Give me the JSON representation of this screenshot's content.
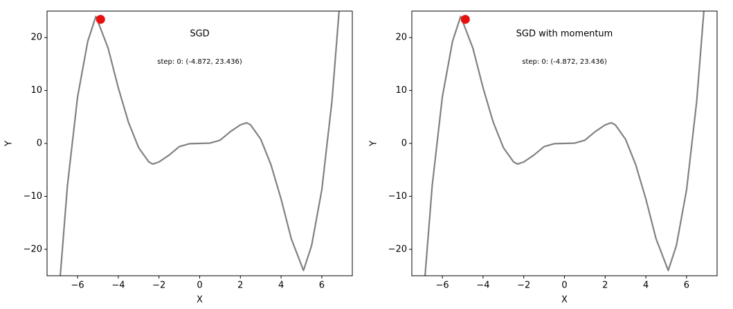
{
  "chart_data": [
    {
      "type": "line",
      "title": "SGD",
      "annotation": "step: 0: (-4.872, 23.436)",
      "xlabel": "X",
      "ylabel": "Y",
      "x": [
        -6.85,
        -6.5,
        -6,
        -5.5,
        -5.1,
        -4.5,
        -4,
        -3.5,
        -3,
        -2.5,
        -2.3,
        -2,
        -1.5,
        -1,
        -0.5,
        0,
        0.5,
        1,
        1.5,
        2,
        2.3,
        2.5,
        3,
        3.5,
        4,
        4.5,
        5.1,
        5.5,
        6,
        6.5,
        6.85
      ],
      "series": [
        {
          "color": "#808080",
          "values": [
            -25,
            -8,
            8.8,
            19.3,
            24,
            18,
            10.5,
            4,
            -0.8,
            -3.5,
            -3.9,
            -3.5,
            -2.2,
            -0.6,
            -0.05,
            0,
            0.05,
            0.6,
            2.2,
            3.5,
            3.9,
            3.5,
            0.8,
            -4,
            -10.5,
            -18,
            -24,
            -19.3,
            -8.8,
            8,
            25
          ]
        }
      ],
      "point": {
        "x": -4.872,
        "y": 23.436,
        "color": "#e8100c"
      },
      "xlim": [
        -7.5,
        7.5
      ],
      "ylim": [
        -25,
        25
      ],
      "xticks": [
        {
          "value": -6,
          "label": "−6"
        },
        {
          "value": -4,
          "label": "−4"
        },
        {
          "value": -2,
          "label": "−2"
        },
        0,
        2,
        4,
        6
      ],
      "yticks": [
        {
          "value": -20,
          "label": "−20"
        },
        {
          "value": -10,
          "label": "−10"
        },
        0,
        10,
        20
      ]
    },
    {
      "type": "line",
      "title": "SGD with momentum",
      "annotation": "step: 0: (-4.872, 23.436)",
      "xlabel": "X",
      "ylabel": "Y",
      "x": [
        -6.85,
        -6.5,
        -6,
        -5.5,
        -5.1,
        -4.5,
        -4,
        -3.5,
        -3,
        -2.5,
        -2.3,
        -2,
        -1.5,
        -1,
        -0.5,
        0,
        0.5,
        1,
        1.5,
        2,
        2.3,
        2.5,
        3,
        3.5,
        4,
        4.5,
        5.1,
        5.5,
        6,
        6.5,
        6.85
      ],
      "series": [
        {
          "color": "#808080",
          "values": [
            -25,
            -8,
            8.8,
            19.3,
            24,
            18,
            10.5,
            4,
            -0.8,
            -3.5,
            -3.9,
            -3.5,
            -2.2,
            -0.6,
            -0.05,
            0,
            0.05,
            0.6,
            2.2,
            3.5,
            3.9,
            3.5,
            0.8,
            -4,
            -10.5,
            -18,
            -24,
            -19.3,
            -8.8,
            8,
            25
          ]
        }
      ],
      "point": {
        "x": -4.872,
        "y": 23.436,
        "color": "#e8100c"
      },
      "xlim": [
        -7.5,
        7.5
      ],
      "ylim": [
        -25,
        25
      ],
      "xticks": [
        {
          "value": -6,
          "label": "−6"
        },
        {
          "value": -4,
          "label": "−4"
        },
        {
          "value": -2,
          "label": "−2"
        },
        0,
        2,
        4,
        6
      ],
      "yticks": [
        {
          "value": -20,
          "label": "−20"
        },
        {
          "value": -10,
          "label": "−10"
        },
        0,
        10,
        20
      ]
    }
  ]
}
